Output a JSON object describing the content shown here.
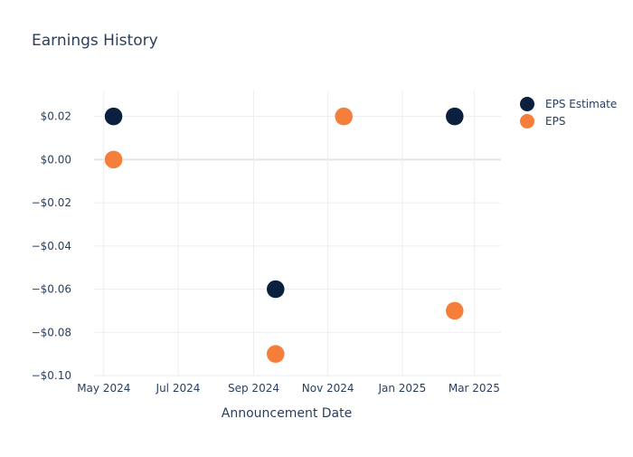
{
  "chart_data": {
    "type": "scatter",
    "title": "Earnings History",
    "xlabel": "Announcement Date",
    "ylabel": "",
    "x_ticks": [
      "2024-05-01",
      "2024-07-01",
      "2024-09-01",
      "2024-11-01",
      "2025-01-01",
      "2025-03-01"
    ],
    "x_tick_labels": [
      "May 2024",
      "Jul 2024",
      "Sep 2024",
      "Nov 2024",
      "Jan 2025",
      "Mar 2025"
    ],
    "xlim": [
      "2024-04-23",
      "2025-03-23"
    ],
    "y_ticks": [
      0.02,
      0,
      -0.02,
      -0.04,
      -0.06,
      -0.08,
      -0.1
    ],
    "y_tick_labels": [
      "$0.02",
      "$0.00",
      "−$0.02",
      "−$0.04",
      "−$0.06",
      "−$0.08",
      "−$0.10"
    ],
    "ylim": [
      -0.1,
      0.032
    ],
    "grid": true,
    "legend_position": "top-right",
    "series": [
      {
        "name": "EPS Estimate",
        "color": "#0b1f3f",
        "points": [
          {
            "x": "2024-05-09",
            "y": 0.02
          },
          {
            "x": "2024-09-19",
            "y": -0.06
          },
          {
            "x": "2024-11-14",
            "y": 0.02
          },
          {
            "x": "2025-02-13",
            "y": 0.02
          }
        ]
      },
      {
        "name": "EPS",
        "color": "#f47e3a",
        "points": [
          {
            "x": "2024-05-09",
            "y": 0.0
          },
          {
            "x": "2024-09-19",
            "y": -0.09
          },
          {
            "x": "2024-11-14",
            "y": 0.02
          },
          {
            "x": "2025-02-13",
            "y": -0.07
          }
        ]
      }
    ]
  }
}
